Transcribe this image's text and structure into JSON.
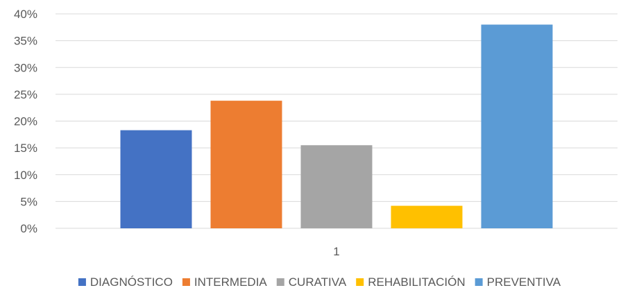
{
  "chart_data": {
    "type": "bar",
    "categories": [
      "1"
    ],
    "series": [
      {
        "name": "DIAGNÓSTICO",
        "values": [
          0.183
        ],
        "color": "#4472C4"
      },
      {
        "name": "INTERMEDIA",
        "values": [
          0.238
        ],
        "color": "#ED7D31"
      },
      {
        "name": "CURATIVA",
        "values": [
          0.155
        ],
        "color": "#A5A5A5"
      },
      {
        "name": "REHABILITACIÓN",
        "values": [
          0.042
        ],
        "color": "#FFC000"
      },
      {
        "name": "PREVENTIVA",
        "values": [
          0.38
        ],
        "color": "#5B9BD5"
      }
    ],
    "ylim": [
      0,
      0.4
    ],
    "yticks": [
      "0%",
      "5%",
      "10%",
      "15%",
      "20%",
      "25%",
      "30%",
      "35%",
      "40%"
    ],
    "grid": true,
    "legend_position": "bottom"
  }
}
